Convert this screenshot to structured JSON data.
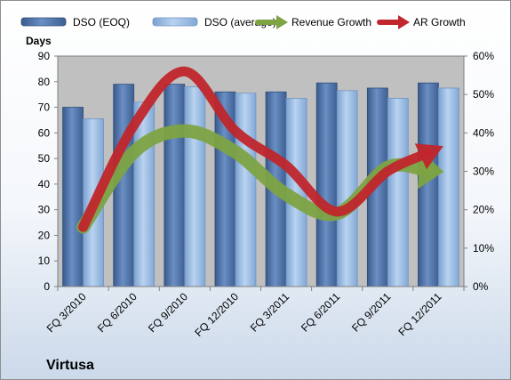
{
  "chart_data": {
    "type": "bar",
    "categories": [
      "FQ 3/2010",
      "FQ 6/2010",
      "FQ 9/2010",
      "FQ 12/2010",
      "FQ 3/2011",
      "FQ 6/2011",
      "FQ 9/2011",
      "FQ 12/2011"
    ],
    "series": [
      {
        "name": "DSO (EOQ)",
        "type": "bar",
        "axis": "left",
        "color": "#4a6ea3",
        "values": [
          70,
          79,
          79,
          76,
          76,
          79.5,
          77.5,
          79.5
        ]
      },
      {
        "name": "DSO (average)",
        "type": "bar",
        "axis": "left",
        "color": "#8fb3de",
        "values": [
          65.5,
          72,
          78,
          75.5,
          73.5,
          76.5,
          73.5,
          77.5
        ]
      },
      {
        "name": "Revenue Growth",
        "type": "line",
        "axis": "right",
        "color": "#7da343",
        "values": [
          0.155,
          0.35,
          0.405,
          0.35,
          0.24,
          0.19,
          0.31,
          0.3
        ]
      },
      {
        "name": "AR Growth",
        "type": "line",
        "axis": "right",
        "color": "#c0262c",
        "values": [
          0.155,
          0.42,
          0.56,
          0.405,
          0.315,
          0.195,
          0.3,
          0.36
        ]
      }
    ],
    "ylabel": "Days",
    "ylim": [
      0,
      90
    ],
    "yticks": [
      "0",
      "10",
      "20",
      "30",
      "40",
      "50",
      "60",
      "70",
      "80",
      "90"
    ],
    "y2lim": [
      0,
      0.6
    ],
    "y2ticks": [
      "0%",
      "10%",
      "20%",
      "30%",
      "40%",
      "50%",
      "60%"
    ],
    "legend_position": "top",
    "grid": false,
    "plot_background": "#c0c0c0"
  },
  "company": "Virtusa"
}
